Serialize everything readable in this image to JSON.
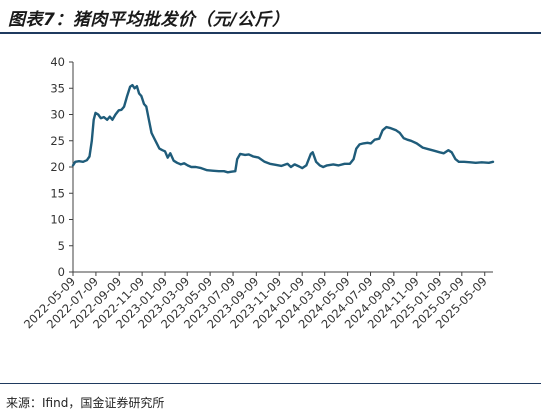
{
  "header": {
    "title": "图表7：猪肉平均批发价（元/公斤）"
  },
  "footer": {
    "source": "来源：Ifind，国金证券研究所"
  },
  "colors": {
    "line": "#1f5c7a",
    "rule": "#1f3a5f",
    "axis": "#404040"
  },
  "chart_data": {
    "type": "line",
    "title": "猪肉平均批发价（元/公斤）",
    "xlabel": "",
    "ylabel": "",
    "ylim": [
      0,
      40
    ],
    "yticks": [
      0,
      5,
      10,
      15,
      20,
      25,
      30,
      35,
      40
    ],
    "xlim": [
      "2022-05-09",
      "2025-05-31"
    ],
    "xticks": [
      "2022-05-09",
      "2022-07-09",
      "2022-09-09",
      "2022-11-09",
      "2023-01-09",
      "2023-03-09",
      "2023-05-09",
      "2023-07-09",
      "2023-09-09",
      "2023-11-09",
      "2024-01-09",
      "2024-03-09",
      "2024-05-09",
      "2024-07-09",
      "2024-09-09",
      "2024-11-09",
      "2025-01-09",
      "2025-03-09",
      "2025-05-09"
    ],
    "grid": false,
    "legend": "none",
    "series": [
      {
        "points": [
          [
            "2022-05-09",
            20.3
          ],
          [
            "2022-05-15",
            21.0
          ],
          [
            "2022-05-25",
            21.1
          ],
          [
            "2022-06-05",
            21.0
          ],
          [
            "2022-06-15",
            21.3
          ],
          [
            "2022-06-22",
            22.0
          ],
          [
            "2022-06-28",
            25.0
          ],
          [
            "2022-07-03",
            29.0
          ],
          [
            "2022-07-08",
            30.3
          ],
          [
            "2022-07-15",
            30.0
          ],
          [
            "2022-07-22",
            29.3
          ],
          [
            "2022-07-30",
            29.5
          ],
          [
            "2022-08-08",
            29.0
          ],
          [
            "2022-08-15",
            29.6
          ],
          [
            "2022-08-22",
            29.0
          ],
          [
            "2022-08-30",
            30.0
          ],
          [
            "2022-09-08",
            30.8
          ],
          [
            "2022-09-15",
            30.9
          ],
          [
            "2022-09-22",
            31.5
          ],
          [
            "2022-09-30",
            33.5
          ],
          [
            "2022-10-08",
            35.3
          ],
          [
            "2022-10-14",
            35.6
          ],
          [
            "2022-10-20",
            35.0
          ],
          [
            "2022-10-26",
            35.4
          ],
          [
            "2022-11-01",
            34.0
          ],
          [
            "2022-11-07",
            33.5
          ],
          [
            "2022-11-14",
            32.0
          ],
          [
            "2022-11-20",
            31.5
          ],
          [
            "2022-11-27",
            29.0
          ],
          [
            "2022-12-04",
            26.5
          ],
          [
            "2022-12-11",
            25.5
          ],
          [
            "2022-12-18",
            24.5
          ],
          [
            "2022-12-25",
            23.5
          ],
          [
            "2023-01-02",
            23.2
          ],
          [
            "2023-01-09",
            23.0
          ],
          [
            "2023-01-16",
            21.8
          ],
          [
            "2023-01-23",
            22.6
          ],
          [
            "2023-02-01",
            21.2
          ],
          [
            "2023-02-10",
            20.8
          ],
          [
            "2023-02-20",
            20.5
          ],
          [
            "2023-03-01",
            20.7
          ],
          [
            "2023-03-10",
            20.3
          ],
          [
            "2023-03-20",
            20.0
          ],
          [
            "2023-04-01",
            20.0
          ],
          [
            "2023-04-15",
            19.8
          ],
          [
            "2023-05-01",
            19.4
          ],
          [
            "2023-05-15",
            19.3
          ],
          [
            "2023-06-01",
            19.2
          ],
          [
            "2023-06-15",
            19.2
          ],
          [
            "2023-06-25",
            19.0
          ],
          [
            "2023-07-05",
            19.1
          ],
          [
            "2023-07-15",
            19.2
          ],
          [
            "2023-07-20",
            21.5
          ],
          [
            "2023-07-28",
            22.5
          ],
          [
            "2023-08-10",
            22.3
          ],
          [
            "2023-08-20",
            22.4
          ],
          [
            "2023-09-01",
            22.0
          ],
          [
            "2023-09-15",
            21.8
          ],
          [
            "2023-10-01",
            21.0
          ],
          [
            "2023-10-15",
            20.6
          ],
          [
            "2023-11-01",
            20.4
          ],
          [
            "2023-11-15",
            20.2
          ],
          [
            "2023-12-01",
            20.6
          ],
          [
            "2023-12-10",
            20.0
          ],
          [
            "2023-12-20",
            20.5
          ],
          [
            "2024-01-01",
            20.1
          ],
          [
            "2024-01-09",
            19.8
          ],
          [
            "2024-01-20",
            20.3
          ],
          [
            "2024-02-01",
            22.5
          ],
          [
            "2024-02-06",
            22.8
          ],
          [
            "2024-02-15",
            21.0
          ],
          [
            "2024-02-25",
            20.3
          ],
          [
            "2024-03-05",
            20.0
          ],
          [
            "2024-03-15",
            20.3
          ],
          [
            "2024-04-01",
            20.5
          ],
          [
            "2024-04-15",
            20.3
          ],
          [
            "2024-05-01",
            20.6
          ],
          [
            "2024-05-15",
            20.6
          ],
          [
            "2024-05-25",
            21.5
          ],
          [
            "2024-06-01",
            23.5
          ],
          [
            "2024-06-10",
            24.3
          ],
          [
            "2024-06-20",
            24.5
          ],
          [
            "2024-07-01",
            24.6
          ],
          [
            "2024-07-10",
            24.5
          ],
          [
            "2024-07-20",
            25.2
          ],
          [
            "2024-08-01",
            25.4
          ],
          [
            "2024-08-10",
            27.0
          ],
          [
            "2024-08-20",
            27.6
          ],
          [
            "2024-09-01",
            27.4
          ],
          [
            "2024-09-15",
            27.0
          ],
          [
            "2024-09-25",
            26.5
          ],
          [
            "2024-10-05",
            25.5
          ],
          [
            "2024-10-15",
            25.2
          ],
          [
            "2024-10-25",
            25.0
          ],
          [
            "2024-11-09",
            24.5
          ],
          [
            "2024-11-25",
            23.7
          ],
          [
            "2024-12-10",
            23.4
          ],
          [
            "2024-12-25",
            23.1
          ],
          [
            "2025-01-09",
            22.8
          ],
          [
            "2025-01-20",
            22.6
          ],
          [
            "2025-02-01",
            23.2
          ],
          [
            "2025-02-10",
            22.8
          ],
          [
            "2025-02-20",
            21.5
          ],
          [
            "2025-03-01",
            21.0
          ],
          [
            "2025-03-15",
            21.0
          ],
          [
            "2025-04-01",
            20.9
          ],
          [
            "2025-04-15",
            20.8
          ],
          [
            "2025-05-01",
            20.9
          ],
          [
            "2025-05-20",
            20.8
          ],
          [
            "2025-05-31",
            21.0
          ]
        ]
      }
    ]
  }
}
